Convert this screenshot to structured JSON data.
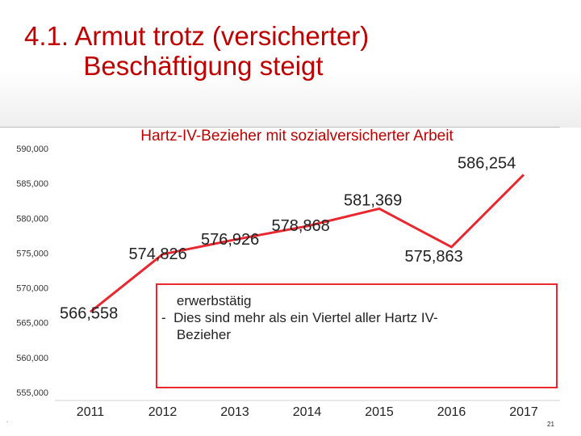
{
  "slide": {
    "title": "4.1. Armut trotz (versicherter)\n        Beschäftigung steigt",
    "page_number": "21",
    "footer_mark": ".",
    "colors": {
      "accent": "#c00000",
      "line": "#e8272f",
      "callout_border": "#e8272f"
    }
  },
  "callout": {
    "text": "    erwerbstätig\n-  Dies sind mehr als ein Viertel aller Hartz IV-\n    Bezieher"
  },
  "chart_data": {
    "type": "line",
    "title": "Hartz-IV-Bezieher mit sozialversicherter Arbeit",
    "xlabel": "",
    "ylabel": "",
    "categories": [
      "2011",
      "2012",
      "2013",
      "2014",
      "2015",
      "2016",
      "2017"
    ],
    "series": [
      {
        "values": [
          566558,
          574826,
          576926,
          578868,
          581369,
          575863,
          586254
        ],
        "color": "#e8272f"
      }
    ],
    "data_labels": [
      "566,558",
      "574,826",
      "576,926",
      "578,868",
      "581,369",
      "575,863",
      "586,254"
    ],
    "y_ticks": [
      555000,
      560000,
      565000,
      570000,
      575000,
      580000,
      585000,
      590000
    ],
    "y_tick_labels": [
      "555,000",
      "560,000",
      "565,000",
      "570,000",
      "575,000",
      "580,000",
      "585,000",
      "590,000"
    ],
    "ylim": [
      555000,
      590000
    ],
    "grid": false,
    "legend": "none"
  }
}
